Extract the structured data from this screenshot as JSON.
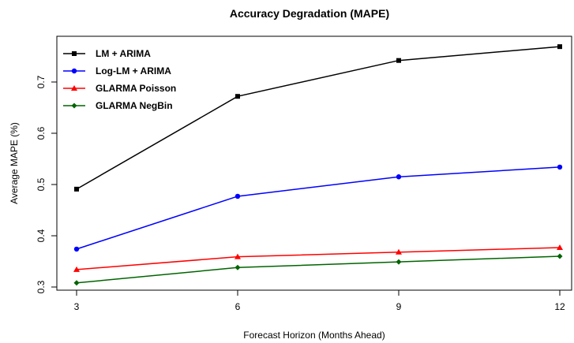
{
  "chart_data": {
    "type": "line",
    "title": "Accuracy Degradation (MAPE)",
    "xlabel": "Forecast Horizon (Months Ahead)",
    "ylabel": "Average MAPE (%)",
    "x": [
      3,
      6,
      9,
      12
    ],
    "x_ticks": [
      "3",
      "6",
      "9",
      "12"
    ],
    "xlim": [
      3,
      12
    ],
    "ylim": [
      0.3,
      0.77
    ],
    "y_ticks": [
      "0.3",
      "0.4",
      "0.5",
      "0.6",
      "0.7"
    ],
    "grid": false,
    "legend_position": "top-left",
    "series": [
      {
        "name": "LM + ARIMA",
        "color": "#000000",
        "marker": "square",
        "values": [
          0.491,
          0.672,
          0.742,
          0.769
        ]
      },
      {
        "name": "Log-LM + ARIMA",
        "color": "#0000ff",
        "marker": "circle",
        "values": [
          0.374,
          0.477,
          0.515,
          0.534
        ]
      },
      {
        "name": "GLARMA Poisson",
        "color": "#ff0000",
        "marker": "triangle",
        "values": [
          0.334,
          0.359,
          0.368,
          0.377
        ]
      },
      {
        "name": "GLARMA NegBin",
        "color": "#006400",
        "marker": "diamond",
        "values": [
          0.308,
          0.338,
          0.349,
          0.36
        ]
      }
    ]
  }
}
